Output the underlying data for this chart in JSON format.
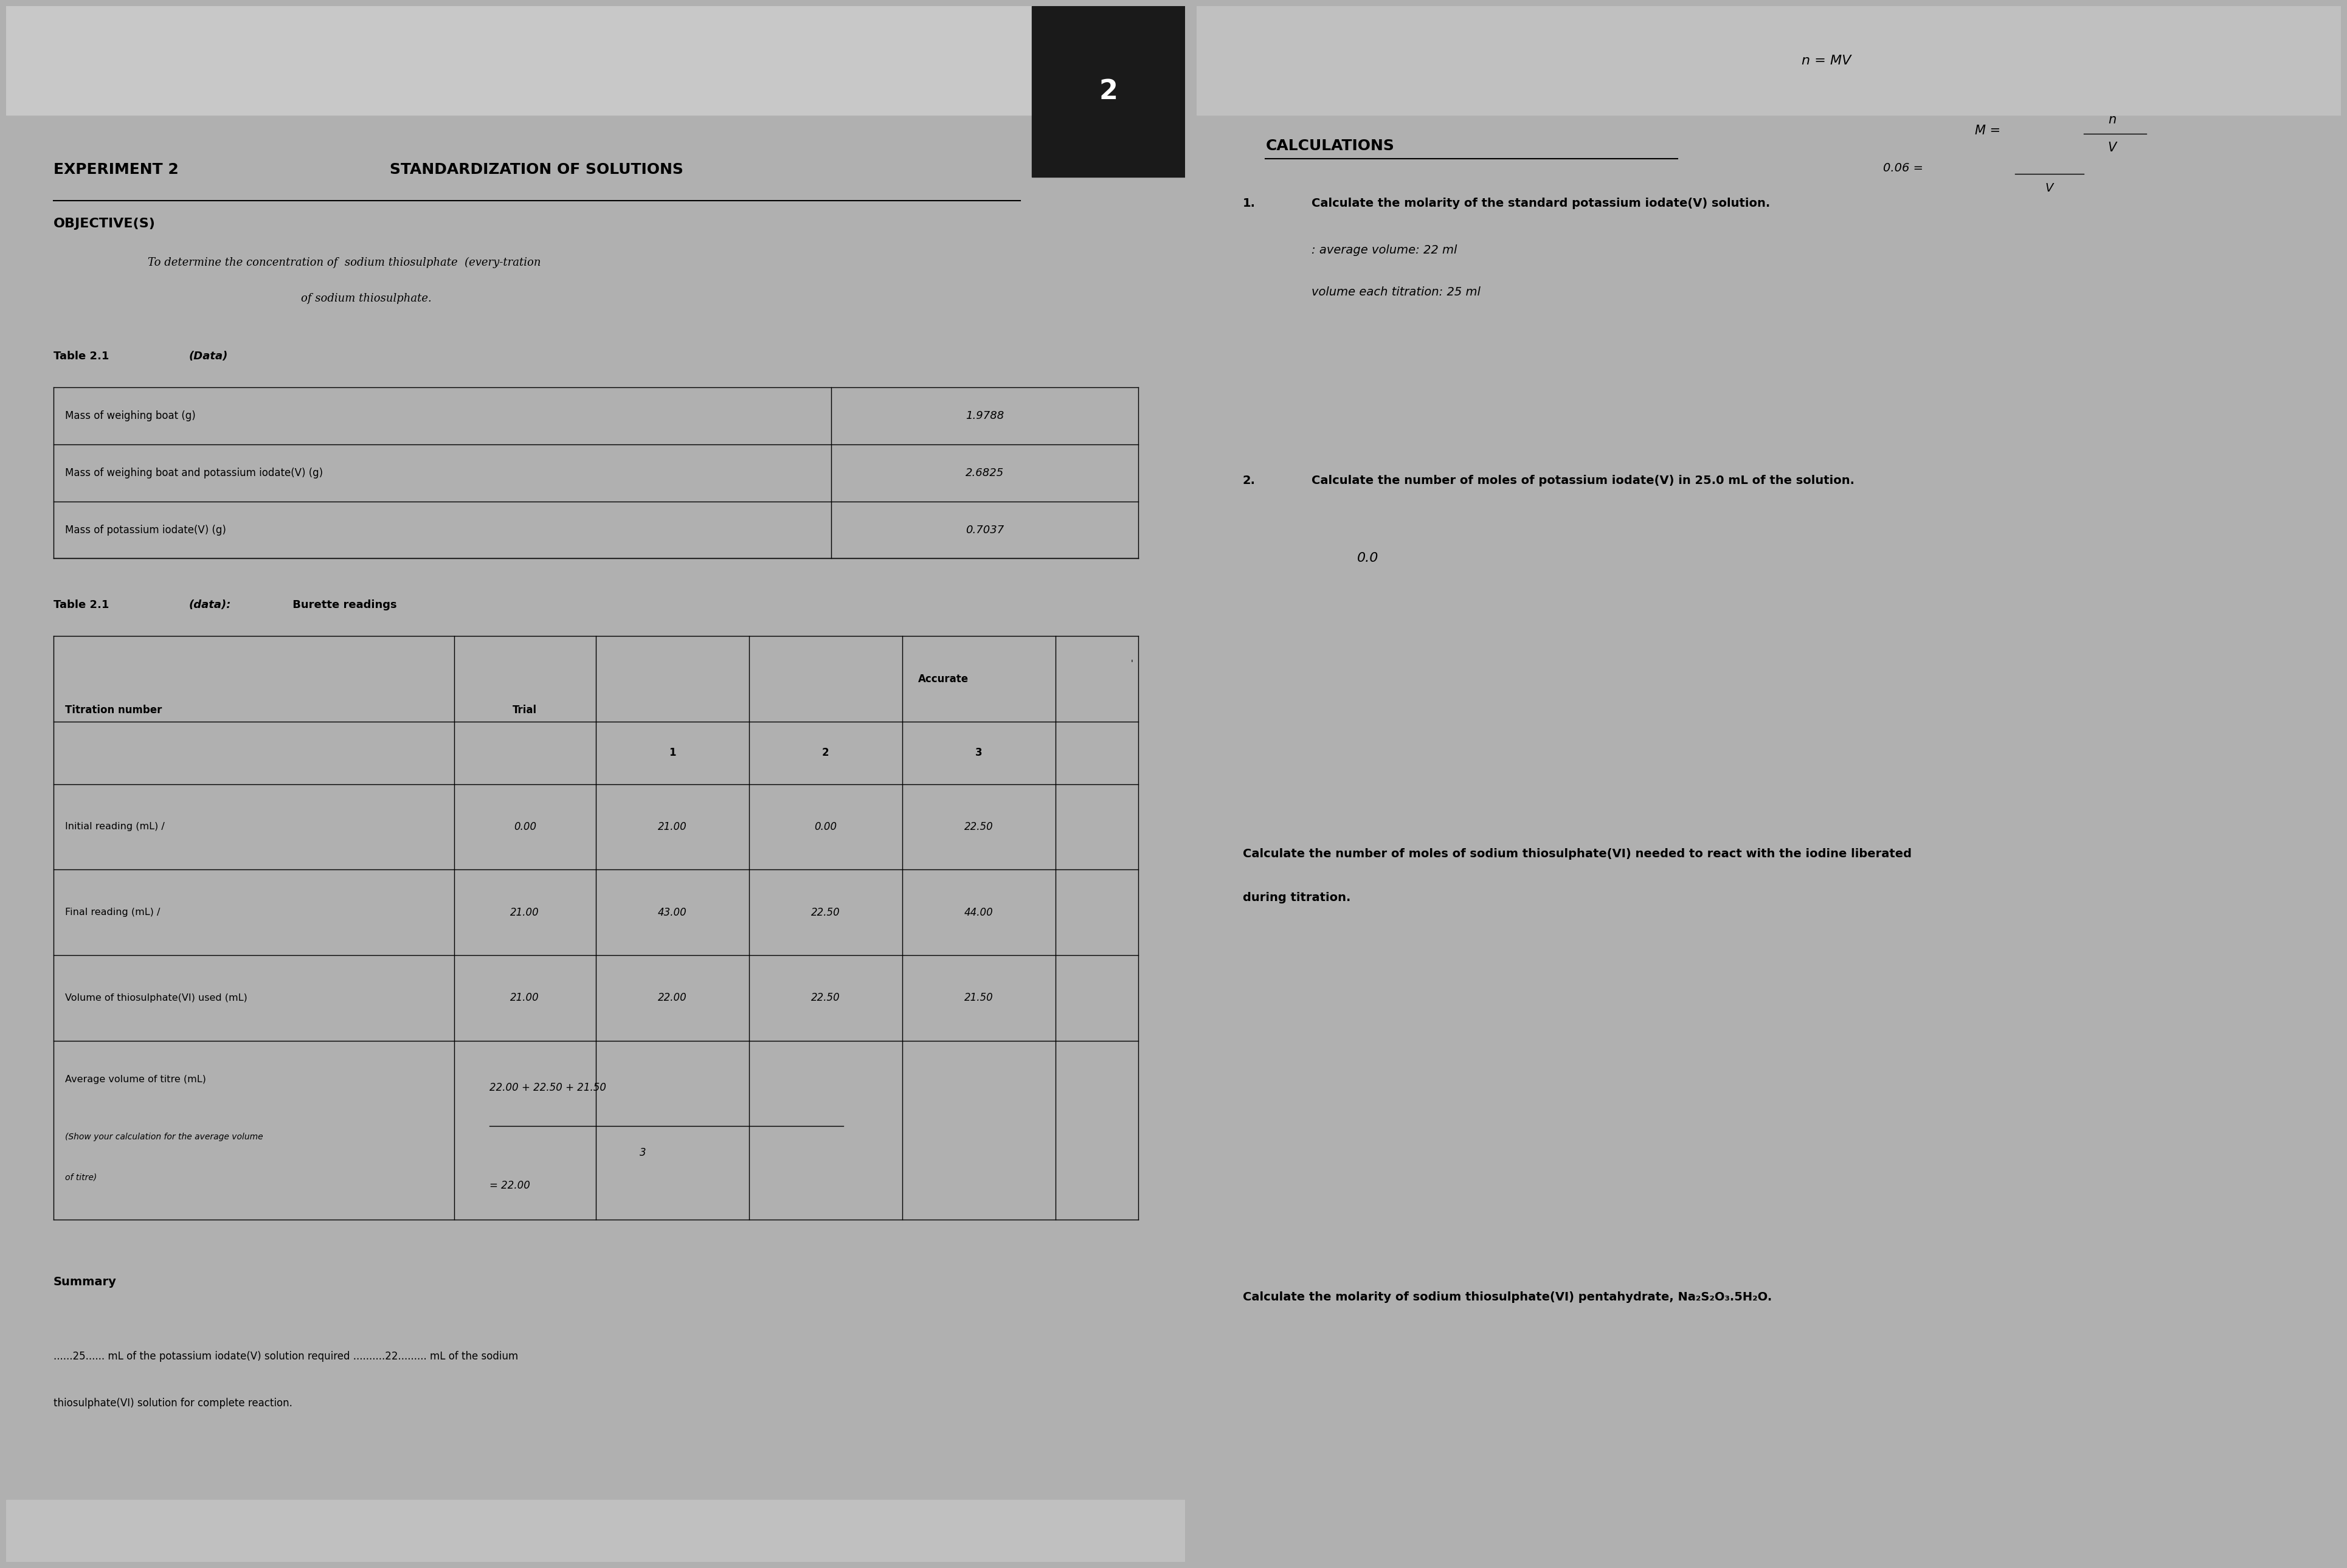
{
  "bg_color": "#b0b0b0",
  "left_page_bg": "#f0ede8",
  "right_page_bg": "#e8e6e0",
  "header_box_color": "#1a1a1a",
  "header_box_text": "2",
  "experiment_title": "EXPERIMENT 2",
  "page_title": "STANDARDIZATION OF SOLUTIONS",
  "objective_label": "OBJECTIVE(S)",
  "objective_text1": "To determine the concentration of  sodium thiosulphate  (every­tration",
  "objective_text2": "of sodium thiosulphate.",
  "table1_label": "Table 2.1 ",
  "table1_label_italic": "(Data)",
  "table1_rows": [
    [
      "Mass of weighing boat (g)",
      "1.9788"
    ],
    [
      "Mass of weighing boat and potassium iodate(V) (g)",
      "2.6825"
    ],
    [
      "Mass of potassium iodate(V) (g)",
      "0.7037"
    ]
  ],
  "table2_label": "Table 2.1 ",
  "table2_label_italic": "(data):",
  "table2_label_rest": " Burette readings",
  "table2_data": [
    [
      "Initial reading (mL) /",
      "0.00",
      "21.00",
      "0.00",
      "22.50"
    ],
    [
      "Final reading (mL) /",
      "21.00",
      "43.00",
      "22.50",
      "44.00"
    ],
    [
      "Volume of thiosulphate(VI) used (mL)",
      "21.00",
      "22.00",
      "22.50",
      "21.50"
    ]
  ],
  "table2_avg_numerator": "22.00 + 22.50 + 21.50",
  "table2_avg_denominator": "3",
  "table2_avg_result": "= 22.00",
  "summary_label": "Summary",
  "calcs_title": "CALCULATIONS",
  "formula_top": "n = MV",
  "calc1_num": "1.",
  "calc1_text": "Calculate the molarity of the standard potassium iodate(V) solution.",
  "calc1_handwriting1": ": average volume: 22 ml",
  "calc1_handwriting2": "volume each titration: 25 ml",
  "calc2_num": "2.",
  "calc2_text": "Calculate the number of moles of potassium iodate(V) in 25.0 mL of the solution.",
  "calc2_handwriting": "0.0",
  "calc3_text": "Calculate the number of moles of sodium thiosulphate(VI) needed to react with the iodine liberated\nduring titration.",
  "calc4_text": "Calculate the molarity of sodium thiosulphate(VI) pentahydrate, Na₂S₂O₃.5H₂O."
}
